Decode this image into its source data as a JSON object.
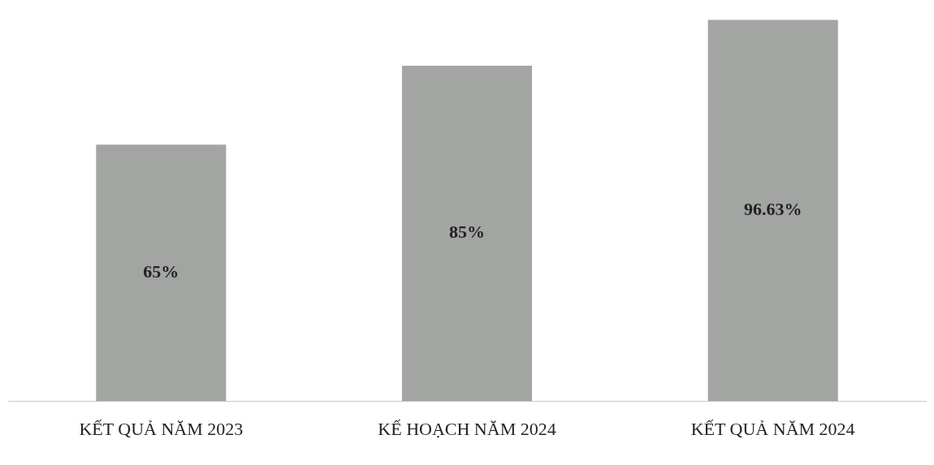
{
  "chart_data": {
    "type": "bar",
    "categories": [
      "KẾT QUẢ NĂM 2023",
      "KẾ HOẠCH NĂM 2024",
      "KẾT QUẢ NĂM 2024"
    ],
    "values": [
      65,
      85,
      96.63
    ],
    "value_labels": [
      "65%",
      "85%",
      "96.63%"
    ],
    "color": "#a2a5a2",
    "grid": false,
    "legend": false,
    "tick_labels": "x"
  }
}
